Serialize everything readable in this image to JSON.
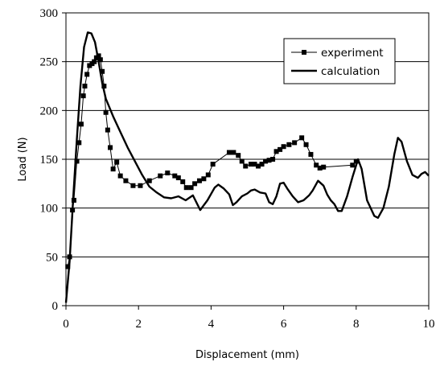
{
  "chart_data": {
    "type": "line",
    "xlabel": "Displacement (mm)",
    "ylabel": "Load (N)",
    "xlim": [
      0,
      10
    ],
    "ylim": [
      0,
      300
    ],
    "x_ticks": [
      "0",
      "2",
      "4",
      "6",
      "8",
      "10"
    ],
    "y_ticks": [
      "0",
      "50",
      "100",
      "150",
      "200",
      "250",
      "300"
    ],
    "x_tick_values": [
      0,
      2,
      4,
      6,
      8,
      10
    ],
    "y_tick_values": [
      0,
      50,
      100,
      150,
      200,
      250,
      300
    ],
    "grid": "horizontal",
    "legend_position": "top-right",
    "colors": {
      "series": "#000000",
      "grid": "#000000",
      "background": "#ffffff"
    },
    "series": [
      {
        "name": "experiment",
        "marker": "square",
        "points": [
          [
            0.05,
            40
          ],
          [
            0.1,
            50
          ],
          [
            0.18,
            98
          ],
          [
            0.22,
            108
          ],
          [
            0.3,
            148
          ],
          [
            0.36,
            167
          ],
          [
            0.42,
            186
          ],
          [
            0.48,
            215
          ],
          [
            0.52,
            225
          ],
          [
            0.58,
            237
          ],
          [
            0.65,
            246
          ],
          [
            0.72,
            248
          ],
          [
            0.78,
            250
          ],
          [
            0.84,
            254
          ],
          [
            0.9,
            256
          ],
          [
            0.95,
            252
          ],
          [
            1.0,
            240
          ],
          [
            1.05,
            225
          ],
          [
            1.1,
            198
          ],
          [
            1.15,
            180
          ],
          [
            1.22,
            162
          ],
          [
            1.3,
            140
          ],
          [
            1.4,
            147
          ],
          [
            1.5,
            133
          ],
          [
            1.65,
            128
          ],
          [
            1.85,
            123
          ],
          [
            2.05,
            123
          ],
          [
            2.3,
            128
          ],
          [
            2.6,
            133
          ],
          [
            2.8,
            136
          ],
          [
            3.0,
            133
          ],
          [
            3.1,
            131
          ],
          [
            3.22,
            127
          ],
          [
            3.32,
            121
          ],
          [
            3.45,
            121
          ],
          [
            3.55,
            125
          ],
          [
            3.68,
            128
          ],
          [
            3.8,
            130
          ],
          [
            3.92,
            134
          ],
          [
            4.05,
            145
          ],
          [
            4.5,
            157
          ],
          [
            4.62,
            157
          ],
          [
            4.75,
            154
          ],
          [
            4.85,
            148
          ],
          [
            4.95,
            143
          ],
          [
            5.1,
            145
          ],
          [
            5.2,
            145
          ],
          [
            5.3,
            143
          ],
          [
            5.4,
            145
          ],
          [
            5.5,
            148
          ],
          [
            5.6,
            149
          ],
          [
            5.7,
            150
          ],
          [
            5.8,
            158
          ],
          [
            5.9,
            160
          ],
          [
            6.0,
            163
          ],
          [
            6.15,
            165
          ],
          [
            6.3,
            167
          ],
          [
            6.5,
            172
          ],
          [
            6.62,
            165
          ],
          [
            6.75,
            155
          ],
          [
            6.9,
            144
          ],
          [
            7.0,
            141
          ],
          [
            7.1,
            142
          ],
          [
            7.9,
            144
          ],
          [
            8.0,
            148
          ]
        ]
      },
      {
        "name": "calculation",
        "marker": "none",
        "points": [
          [
            0.0,
            3
          ],
          [
            0.1,
            45
          ],
          [
            0.2,
            110
          ],
          [
            0.3,
            170
          ],
          [
            0.4,
            225
          ],
          [
            0.5,
            265
          ],
          [
            0.6,
            280
          ],
          [
            0.7,
            279
          ],
          [
            0.8,
            270
          ],
          [
            0.9,
            250
          ],
          [
            1.0,
            228
          ],
          [
            1.1,
            212
          ],
          [
            1.3,
            194
          ],
          [
            1.5,
            178
          ],
          [
            1.7,
            162
          ],
          [
            1.9,
            148
          ],
          [
            2.1,
            134
          ],
          [
            2.3,
            122
          ],
          [
            2.5,
            116
          ],
          [
            2.7,
            111
          ],
          [
            2.9,
            110
          ],
          [
            3.1,
            112
          ],
          [
            3.3,
            108
          ],
          [
            3.5,
            113
          ],
          [
            3.7,
            98
          ],
          [
            3.9,
            108
          ],
          [
            4.1,
            121
          ],
          [
            4.2,
            124
          ],
          [
            4.35,
            120
          ],
          [
            4.5,
            114
          ],
          [
            4.6,
            103
          ],
          [
            4.7,
            106
          ],
          [
            4.85,
            112
          ],
          [
            5.0,
            115
          ],
          [
            5.1,
            118
          ],
          [
            5.2,
            119
          ],
          [
            5.35,
            116
          ],
          [
            5.5,
            115
          ],
          [
            5.6,
            106
          ],
          [
            5.7,
            104
          ],
          [
            5.8,
            112
          ],
          [
            5.9,
            125
          ],
          [
            6.0,
            126
          ],
          [
            6.1,
            120
          ],
          [
            6.25,
            112
          ],
          [
            6.4,
            106
          ],
          [
            6.55,
            108
          ],
          [
            6.7,
            113
          ],
          [
            6.8,
            118
          ],
          [
            6.95,
            128
          ],
          [
            7.1,
            123
          ],
          [
            7.2,
            114
          ],
          [
            7.3,
            108
          ],
          [
            7.4,
            104
          ],
          [
            7.5,
            97
          ],
          [
            7.6,
            97
          ],
          [
            7.75,
            112
          ],
          [
            7.9,
            132
          ],
          [
            8.05,
            150
          ],
          [
            8.15,
            140
          ],
          [
            8.3,
            108
          ],
          [
            8.5,
            92
          ],
          [
            8.6,
            90
          ],
          [
            8.75,
            100
          ],
          [
            8.9,
            122
          ],
          [
            9.05,
            155
          ],
          [
            9.15,
            172
          ],
          [
            9.25,
            168
          ],
          [
            9.4,
            148
          ],
          [
            9.55,
            134
          ],
          [
            9.7,
            131
          ],
          [
            9.8,
            135
          ],
          [
            9.9,
            137
          ],
          [
            10.0,
            133
          ]
        ]
      }
    ]
  }
}
